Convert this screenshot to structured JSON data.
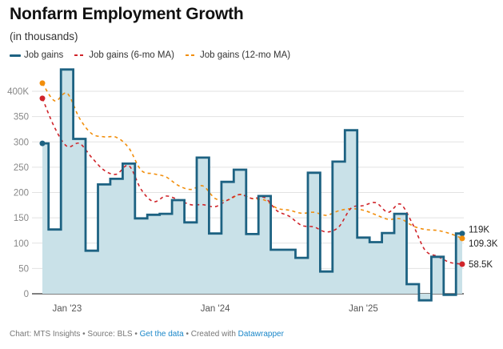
{
  "header": {
    "title": "Nonfarm Employment Growth",
    "subtitle": "(in thousands)"
  },
  "legend": [
    {
      "label": "Job gains",
      "style": "solid",
      "color": "#1d6282"
    },
    {
      "label": "Job gains (6-mo MA)",
      "style": "dashed",
      "color": "#d0242a"
    },
    {
      "label": "Job gains (12-mo MA)",
      "style": "dashed",
      "color": "#f28e0b"
    }
  ],
  "footer": {
    "chart_credit": "Chart: MTS Insights",
    "sep1": " • ",
    "source": "Source: BLS",
    "sep2": " • ",
    "get_data": "Get the data",
    "sep3": " • ",
    "created_with": "Created with ",
    "datawrapper": "Datawrapper"
  },
  "chart_data": {
    "type": "line",
    "title": "Nonfarm Employment Growth",
    "subtitle": "(in thousands)",
    "xlabel": "",
    "ylabel": "",
    "ylim": [
      -20,
      450
    ],
    "yticks": [
      0,
      50,
      100,
      150,
      200,
      250,
      300,
      350,
      400
    ],
    "ytick_labels": [
      "0",
      "50",
      "100",
      "150",
      "200",
      "250",
      "300",
      "350",
      "400K"
    ],
    "grid": true,
    "legend_position": "top-left",
    "x": [
      "Nov '22",
      "Dec '22",
      "Jan '23",
      "Feb '23",
      "Mar '23",
      "Apr '23",
      "May '23",
      "Jun '23",
      "Jul '23",
      "Aug '23",
      "Sep '23",
      "Oct '23",
      "Nov '23",
      "Dec '23",
      "Jan '24",
      "Feb '24",
      "Mar '24",
      "Apr '24",
      "May '24",
      "Jun '24",
      "Jul '24",
      "Aug '24",
      "Sep '24",
      "Oct '24",
      "Nov '24",
      "Dec '24",
      "Jan '25",
      "Feb '25",
      "Mar '25",
      "Apr '25",
      "May '25",
      "Jun '25",
      "Jul '25",
      "Aug '25",
      "Sep '25"
    ],
    "xticks": [
      {
        "index": 2,
        "label": "Jan '23"
      },
      {
        "index": 14,
        "label": "Jan '24"
      },
      {
        "index": 26,
        "label": "Jan '25"
      }
    ],
    "series": [
      {
        "name": "Job gains",
        "style": "step-area",
        "color": "#1d6282",
        "fill": "#c9e1e8",
        "values": [
          297,
          127,
          443,
          306,
          85,
          216,
          227,
          257,
          149,
          156,
          158,
          185,
          141,
          269,
          119,
          221,
          245,
          118,
          193,
          87,
          87,
          71,
          239,
          44,
          261,
          323,
          111,
          102,
          120,
          158,
          19,
          -13,
          73,
          -2,
          119
        ],
        "end_label": "119K"
      },
      {
        "name": "Job gains (6-mo MA)",
        "style": "dashed",
        "color": "#d0242a",
        "values": [
          386,
          328,
          291,
          297,
          269,
          244,
          236,
          253,
          206,
          182,
          193,
          186,
          176,
          176,
          172,
          185,
          196,
          188,
          190,
          164,
          153,
          135,
          132,
          122,
          132,
          169,
          174,
          180,
          161,
          177,
          137,
          86,
          74,
          62,
          58.5
        ],
        "end_label": "58.5K"
      },
      {
        "name": "Job gains (12-mo MA)",
        "style": "dashed",
        "color": "#f28e0b",
        "values": [
          416,
          381,
          396,
          347,
          316,
          310,
          309,
          288,
          244,
          237,
          231,
          214,
          206,
          213,
          188,
          185,
          196,
          188,
          185,
          169,
          165,
          159,
          161,
          155,
          164,
          168,
          165,
          156,
          147,
          148,
          134,
          127,
          125,
          119,
          109.3
        ],
        "end_label": "109.3K"
      }
    ]
  }
}
